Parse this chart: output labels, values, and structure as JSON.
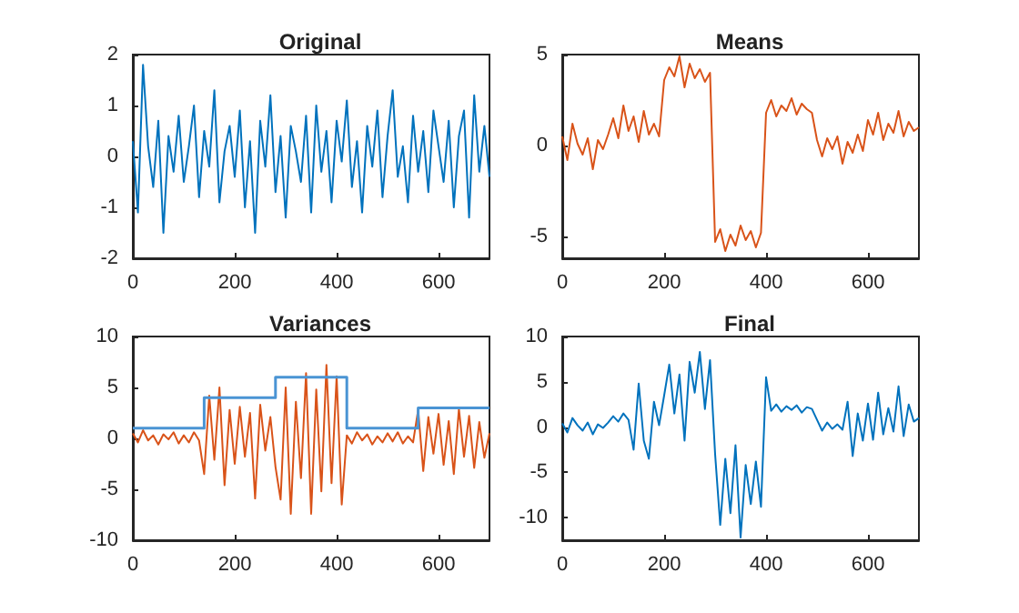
{
  "chart_data": [
    {
      "type": "line",
      "title": "Original",
      "x": [
        0,
        10,
        20,
        30,
        40,
        50,
        60,
        70,
        80,
        90,
        100,
        110,
        120,
        130,
        140,
        150,
        160,
        170,
        180,
        190,
        200,
        210,
        220,
        230,
        240,
        250,
        260,
        270,
        280,
        290,
        300,
        310,
        320,
        330,
        340,
        350,
        360,
        370,
        380,
        390,
        400,
        410,
        420,
        430,
        440,
        450,
        460,
        470,
        480,
        490,
        500,
        510,
        520,
        530,
        540,
        550,
        560,
        570,
        580,
        590,
        600,
        610,
        620,
        630,
        640,
        650,
        660,
        670,
        680,
        690,
        700
      ],
      "xlim": [
        0,
        700
      ],
      "xticks": [
        0,
        200,
        400,
        600
      ],
      "ylim": [
        -2,
        2
      ],
      "yticks": [
        -2,
        -1,
        0,
        1,
        2
      ],
      "series": [
        {
          "color": "#0072bd",
          "values": [
            0.3,
            -1.1,
            1.8,
            0.2,
            -0.6,
            0.7,
            -1.5,
            0.4,
            -0.3,
            0.8,
            -0.5,
            0.2,
            1.0,
            -0.8,
            0.5,
            -0.2,
            1.3,
            -0.9,
            0.1,
            0.6,
            -0.4,
            0.9,
            -1.0,
            0.3,
            -1.5,
            0.7,
            -0.2,
            1.2,
            -0.7,
            0.4,
            -1.2,
            0.6,
            0.1,
            -0.5,
            0.8,
            -1.1,
            1.0,
            -0.3,
            0.5,
            -0.9,
            0.7,
            -0.1,
            1.1,
            -0.6,
            0.3,
            -1.1,
            0.6,
            -0.2,
            0.9,
            -0.8,
            0.4,
            1.3,
            -0.4,
            0.2,
            -0.9,
            0.8,
            -0.3,
            0.5,
            -0.7,
            0.9,
            0.2,
            -0.5,
            0.7,
            -1.0,
            0.4,
            0.9,
            -1.2,
            1.2,
            -0.3,
            0.6,
            -0.4
          ]
        }
      ]
    },
    {
      "type": "line",
      "title": "Means",
      "x": [
        0,
        10,
        20,
        30,
        40,
        50,
        60,
        70,
        80,
        90,
        100,
        110,
        120,
        130,
        140,
        150,
        160,
        170,
        180,
        190,
        200,
        210,
        220,
        230,
        240,
        250,
        260,
        270,
        280,
        290,
        300,
        310,
        320,
        330,
        340,
        350,
        360,
        370,
        380,
        390,
        400,
        410,
        420,
        430,
        440,
        450,
        460,
        470,
        480,
        490,
        500,
        510,
        520,
        530,
        540,
        550,
        560,
        570,
        580,
        590,
        600,
        610,
        620,
        630,
        640,
        650,
        660,
        670,
        680,
        690,
        700
      ],
      "xlim": [
        0,
        700
      ],
      "xticks": [
        0,
        200,
        400,
        600
      ],
      "ylim": [
        -6.2,
        5
      ],
      "yticks": [
        -5,
        0,
        5
      ],
      "series": [
        {
          "color": "#d95319",
          "values": [
            0.5,
            -0.8,
            1.2,
            0.1,
            -0.5,
            0.4,
            -1.3,
            0.3,
            -0.2,
            0.6,
            1.5,
            0.4,
            2.2,
            0.8,
            1.6,
            0.2,
            1.9,
            0.6,
            1.2,
            0.5,
            3.6,
            4.3,
            3.8,
            4.9,
            3.2,
            4.5,
            3.7,
            4.2,
            3.5,
            4.0,
            -5.3,
            -4.6,
            -5.8,
            -4.9,
            -5.5,
            -4.4,
            -5.2,
            -4.7,
            -5.6,
            -4.8,
            1.8,
            2.5,
            1.6,
            2.2,
            1.9,
            2.6,
            1.7,
            2.3,
            2.0,
            1.8,
            0.3,
            -0.6,
            0.4,
            -0.2,
            0.5,
            -1.0,
            0.2,
            -0.4,
            0.6,
            -0.3,
            1.4,
            0.6,
            1.8,
            0.3,
            1.2,
            0.7,
            1.9,
            0.5,
            1.3,
            0.8,
            1.0
          ]
        }
      ]
    },
    {
      "type": "line",
      "title": "Variances",
      "x": [
        0,
        10,
        20,
        30,
        40,
        50,
        60,
        70,
        80,
        90,
        100,
        110,
        120,
        130,
        140,
        150,
        160,
        170,
        180,
        190,
        200,
        210,
        220,
        230,
        240,
        250,
        260,
        270,
        280,
        290,
        300,
        310,
        320,
        330,
        340,
        350,
        360,
        370,
        380,
        390,
        400,
        410,
        420,
        430,
        440,
        450,
        460,
        470,
        480,
        490,
        500,
        510,
        520,
        530,
        540,
        550,
        560,
        570,
        580,
        590,
        600,
        610,
        620,
        630,
        640,
        650,
        660,
        670,
        680,
        690,
        700
      ],
      "xlim": [
        0,
        700
      ],
      "xticks": [
        0,
        200,
        400,
        600
      ],
      "ylim": [
        -10,
        10
      ],
      "yticks": [
        -10,
        -5,
        0,
        5,
        10
      ],
      "series": [
        {
          "color": "#d95319",
          "values": [
            0.5,
            -0.4,
            0.8,
            -0.2,
            0.3,
            -0.6,
            0.4,
            -0.1,
            0.6,
            -0.5,
            0.3,
            -0.4,
            0.6,
            -0.2,
            -3.5,
            4.2,
            -2.1,
            5.0,
            -4.6,
            2.8,
            -2.5,
            3.1,
            -1.8,
            2.5,
            -5.9,
            3.3,
            -1.2,
            2.1,
            -2.8,
            -6.0,
            5.0,
            -7.4,
            3.6,
            -3.9,
            6.4,
            -7.4,
            4.8,
            -5.2,
            7.2,
            -4.4,
            6.1,
            -6.5,
            0.3,
            -0.5,
            0.6,
            -0.2,
            0.4,
            -0.6,
            0.2,
            -0.4,
            0.5,
            -0.3,
            0.6,
            -0.5,
            0.2,
            -0.4,
            2.8,
            -3.2,
            2.1,
            -1.5,
            2.4,
            -2.6,
            1.7,
            -3.5,
            2.9,
            -1.8,
            2.2,
            -2.9,
            1.6,
            -1.9,
            0.5
          ]
        },
        {
          "type": "step",
          "color": "#4a94d4",
          "x": [
            0,
            140,
            280,
            420,
            560,
            700
          ],
          "values": [
            1,
            4,
            6,
            1,
            3,
            3
          ]
        }
      ]
    },
    {
      "type": "line",
      "title": "Final",
      "x": [
        0,
        10,
        20,
        30,
        40,
        50,
        60,
        70,
        80,
        90,
        100,
        110,
        120,
        130,
        140,
        150,
        160,
        170,
        180,
        190,
        200,
        210,
        220,
        230,
        240,
        250,
        260,
        270,
        280,
        290,
        300,
        310,
        320,
        330,
        340,
        350,
        360,
        370,
        380,
        390,
        400,
        410,
        420,
        430,
        440,
        450,
        460,
        470,
        480,
        490,
        500,
        510,
        520,
        530,
        540,
        550,
        560,
        570,
        580,
        590,
        600,
        610,
        620,
        630,
        640,
        650,
        660,
        670,
        680,
        690,
        700
      ],
      "xlim": [
        0,
        700
      ],
      "xticks": [
        0,
        200,
        400,
        600
      ],
      "ylim": [
        -12.5,
        10
      ],
      "yticks": [
        -10,
        -5,
        0,
        5,
        10
      ],
      "series": [
        {
          "color": "#0072bd",
          "values": [
            0.4,
            -0.6,
            1.0,
            0.2,
            -0.4,
            0.5,
            -0.8,
            0.3,
            -0.1,
            0.5,
            1.2,
            0.6,
            1.5,
            0.8,
            -2.5,
            4.8,
            -1.5,
            -3.5,
            2.8,
            0.2,
            3.5,
            6.9,
            1.5,
            5.8,
            -1.5,
            7.2,
            3.8,
            8.3,
            2.0,
            7.4,
            -3.0,
            -10.8,
            -3.5,
            -9.5,
            -2.0,
            -12.2,
            -4.2,
            -8.5,
            -3.8,
            -8.8,
            5.5,
            1.8,
            2.5,
            1.7,
            2.3,
            1.9,
            2.4,
            1.6,
            2.2,
            2.0,
            0.8,
            -0.4,
            0.5,
            -0.2,
            0.3,
            -0.3,
            2.8,
            -3.2,
            1.5,
            -1.5,
            2.6,
            -1.4,
            3.8,
            -0.8,
            2.1,
            -0.5,
            4.5,
            -1.0,
            2.5,
            0.6,
            1.0
          ]
        }
      ]
    }
  ]
}
